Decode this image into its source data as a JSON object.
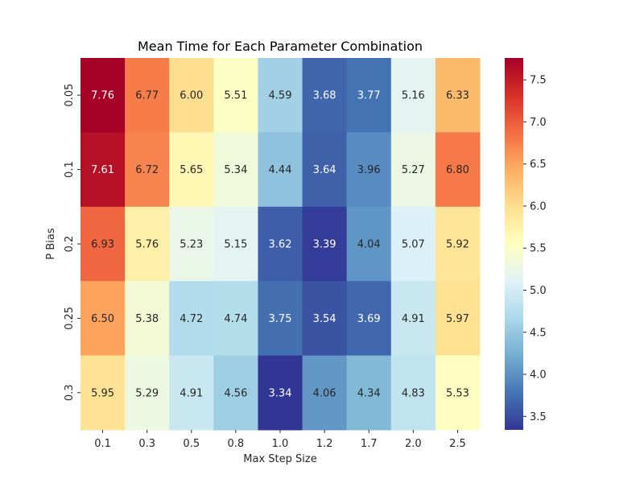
{
  "chart_data": {
    "type": "heatmap",
    "title": "Mean Time for Each Parameter Combination",
    "xlabel": "Max Step Size",
    "ylabel": "P Bias",
    "x_categories": [
      "0.1",
      "0.3",
      "0.5",
      "0.8",
      "1.0",
      "1.2",
      "1.7",
      "2.0",
      "2.5"
    ],
    "y_categories": [
      "0.05",
      "0.1",
      "0.2",
      "0.25",
      "0.3"
    ],
    "values": [
      [
        7.76,
        6.77,
        6.0,
        5.51,
        4.59,
        3.68,
        3.77,
        5.16,
        6.33
      ],
      [
        7.61,
        6.72,
        5.65,
        5.34,
        4.44,
        3.64,
        3.96,
        5.27,
        6.8
      ],
      [
        6.93,
        5.76,
        5.23,
        5.15,
        3.62,
        3.39,
        4.04,
        5.07,
        5.92
      ],
      [
        6.5,
        5.38,
        4.72,
        4.74,
        3.75,
        3.54,
        3.69,
        4.91,
        5.97
      ],
      [
        5.95,
        5.29,
        4.91,
        4.56,
        3.34,
        4.06,
        4.34,
        4.83,
        5.53
      ]
    ],
    "value_range": [
      3.34,
      7.76
    ],
    "colormap": "RdYlBu_r",
    "colorbar_ticks": [
      "3.5",
      "4.0",
      "4.5",
      "5.0",
      "5.5",
      "6.0",
      "6.5",
      "7.0",
      "7.5"
    ],
    "annotations": true,
    "grid": false,
    "legend": "colorbar-right"
  }
}
